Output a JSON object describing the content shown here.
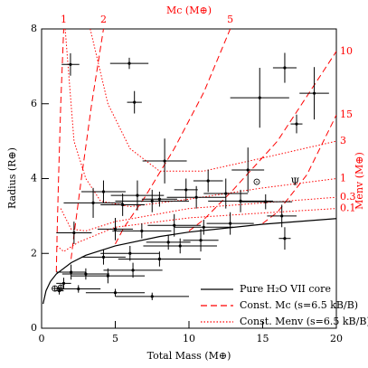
{
  "chart_data": {
    "type": "scatter",
    "x_label": "Total Mass (M⊕)",
    "y_label": "Radius (R⊕)",
    "top_label": "Mc (M⊕)",
    "right_label": "Menv (M⊕)",
    "xlim": [
      0,
      20
    ],
    "ylim": [
      0,
      8
    ],
    "xticks": [
      0,
      5,
      10,
      15,
      20
    ],
    "yticks": [
      0,
      2,
      4,
      6,
      8
    ],
    "points": {
      "color": "#000000",
      "x": [
        1.96,
        5.95,
        6.3,
        16.5,
        18.5,
        14.8,
        17.3,
        8.35,
        14.0,
        9.8,
        11.3,
        4.2,
        6.5,
        8.0,
        10.5,
        12.5,
        13.5,
        15.2,
        16.3,
        3.5,
        5.5,
        7.5,
        9.0,
        11.0,
        12.8,
        2.2,
        16.5,
        5.0,
        6.8,
        8.6,
        9.4,
        10.8,
        4.2,
        6.0,
        8.0,
        2.0,
        3.0,
        4.5,
        6.2,
        1.5,
        2.5,
        5.0,
        7.5,
        1.2
      ],
      "xerr": [
        0.6,
        1.3,
        0.5,
        0.8,
        1.0,
        2.0,
        0.4,
        1.5,
        1.1,
        0.8,
        1.0,
        1.5,
        1.8,
        1.2,
        2.0,
        1.5,
        2.2,
        1.8,
        1.0,
        2.0,
        1.5,
        2.5,
        1.8,
        2.0,
        1.6,
        1.2,
        0.4,
        1.2,
        2.0,
        1.5,
        2.5,
        1.2,
        1.5,
        2.0,
        2.8,
        1.0,
        1.6,
        2.5,
        2.0,
        0.5,
        1.5,
        2.0,
        2.5,
        0.3
      ],
      "values": [
        7.05,
        7.08,
        6.04,
        6.96,
        6.28,
        6.16,
        5.46,
        4.47,
        4.23,
        3.7,
        3.94,
        3.65,
        3.55,
        3.45,
        3.5,
        3.6,
        3.4,
        3.38,
        3.0,
        3.35,
        3.3,
        3.4,
        2.75,
        2.7,
        2.8,
        2.55,
        2.4,
        2.65,
        2.6,
        2.3,
        2.2,
        2.35,
        1.9,
        2.0,
        1.85,
        1.5,
        1.45,
        1.4,
        1.55,
        1.2,
        1.05,
        0.95,
        0.85,
        1.0
      ],
      "yerr": [
        0.3,
        0.15,
        0.3,
        0.4,
        0.7,
        0.8,
        0.25,
        0.6,
        0.6,
        0.3,
        0.3,
        0.3,
        0.4,
        0.2,
        0.3,
        0.4,
        0.3,
        0.2,
        0.3,
        0.4,
        0.3,
        0.3,
        0.3,
        0.2,
        0.3,
        0.3,
        0.3,
        0.3,
        0.2,
        0.2,
        0.2,
        0.3,
        0.2,
        0.2,
        0.2,
        0.2,
        0.15,
        0.2,
        0.2,
        0.15,
        0.1,
        0.1,
        0.1,
        0.1
      ]
    },
    "curves": [
      {
        "name": "Pure H₂O VII core",
        "color": "#000000",
        "line": "solid",
        "lines": [
          {
            "x": [
              0.1,
              0.3,
              0.6,
              1,
              2,
              3,
              5,
              8,
              10,
              15,
              20
            ],
            "values": [
              0.65,
              1.0,
              1.25,
              1.45,
              1.75,
              1.95,
              2.2,
              2.45,
              2.57,
              2.78,
              2.93
            ]
          }
        ]
      },
      {
        "name": "Const. Mc (s=6.5 kB/B)",
        "color": "#ff0000",
        "line": "dashed",
        "lines": [
          {
            "label": "1",
            "x": [
              1,
              1.05,
              1.15,
              1.3,
              1.5
            ],
            "values": [
              1.5,
              2.5,
              4,
              6,
              8
            ]
          },
          {
            "label": "2",
            "x": [
              2,
              2.2,
              2.7,
              3.4,
              4.2
            ],
            "values": [
              1.85,
              2.5,
              4,
              6,
              8
            ]
          },
          {
            "label": "5",
            "x": [
              5,
              5.6,
              7,
              9,
              11,
              12.8
            ],
            "values": [
              2.25,
              2.7,
              3.5,
              4.8,
              6.3,
              8
            ]
          },
          {
            "label": "10",
            "x": [
              10,
              11,
              13,
              16,
              20
            ],
            "values": [
              2.6,
              2.9,
              3.7,
              5.0,
              7.4
            ]
          },
          {
            "label": "15",
            "x": [
              15,
              16,
              18,
              20
            ],
            "values": [
              2.8,
              3.1,
              4.1,
              5.7
            ]
          }
        ]
      },
      {
        "name": "Const. Menv (s=6.5 kB/B)",
        "color": "#ff0000",
        "line": "dotted",
        "lines": [
          {
            "label": "3",
            "x": [
              3.3,
              4.5,
              6,
              8,
              11,
              15,
              20
            ],
            "values": [
              8,
              6,
              4.8,
              4.2,
              4.2,
              4.55,
              5.0
            ]
          },
          {
            "label": "1",
            "x": [
              1.6,
              2.2,
              3,
              4,
              6,
              10,
              15,
              20
            ],
            "values": [
              8,
              5,
              4,
              3.4,
              3.25,
              3.45,
              3.75,
              4.0
            ]
          },
          {
            "label": "0.3",
            "x": [
              1.3,
              2,
              3,
              5,
              10,
              15,
              20
            ],
            "values": [
              3.2,
              2.65,
              2.6,
              2.85,
              3.2,
              3.35,
              3.5
            ]
          },
          {
            "label": "0.1",
            "x": [
              1.05,
              1.5,
              2.5,
              5,
              10,
              15,
              20
            ],
            "values": [
              2.2,
              2.05,
              2.3,
              2.7,
              2.95,
              3.08,
              3.2
            ]
          }
        ]
      }
    ],
    "symbols": [
      {
        "label": "⊕",
        "x": 0.9,
        "y": 1.05
      },
      {
        "label": "⊕",
        "x": 1.3,
        "y": 1.08
      },
      {
        "label": "⊙",
        "x": 14.6,
        "y": 3.9
      },
      {
        "label": "Ψ",
        "x": 17.2,
        "y": 3.9
      }
    ]
  }
}
